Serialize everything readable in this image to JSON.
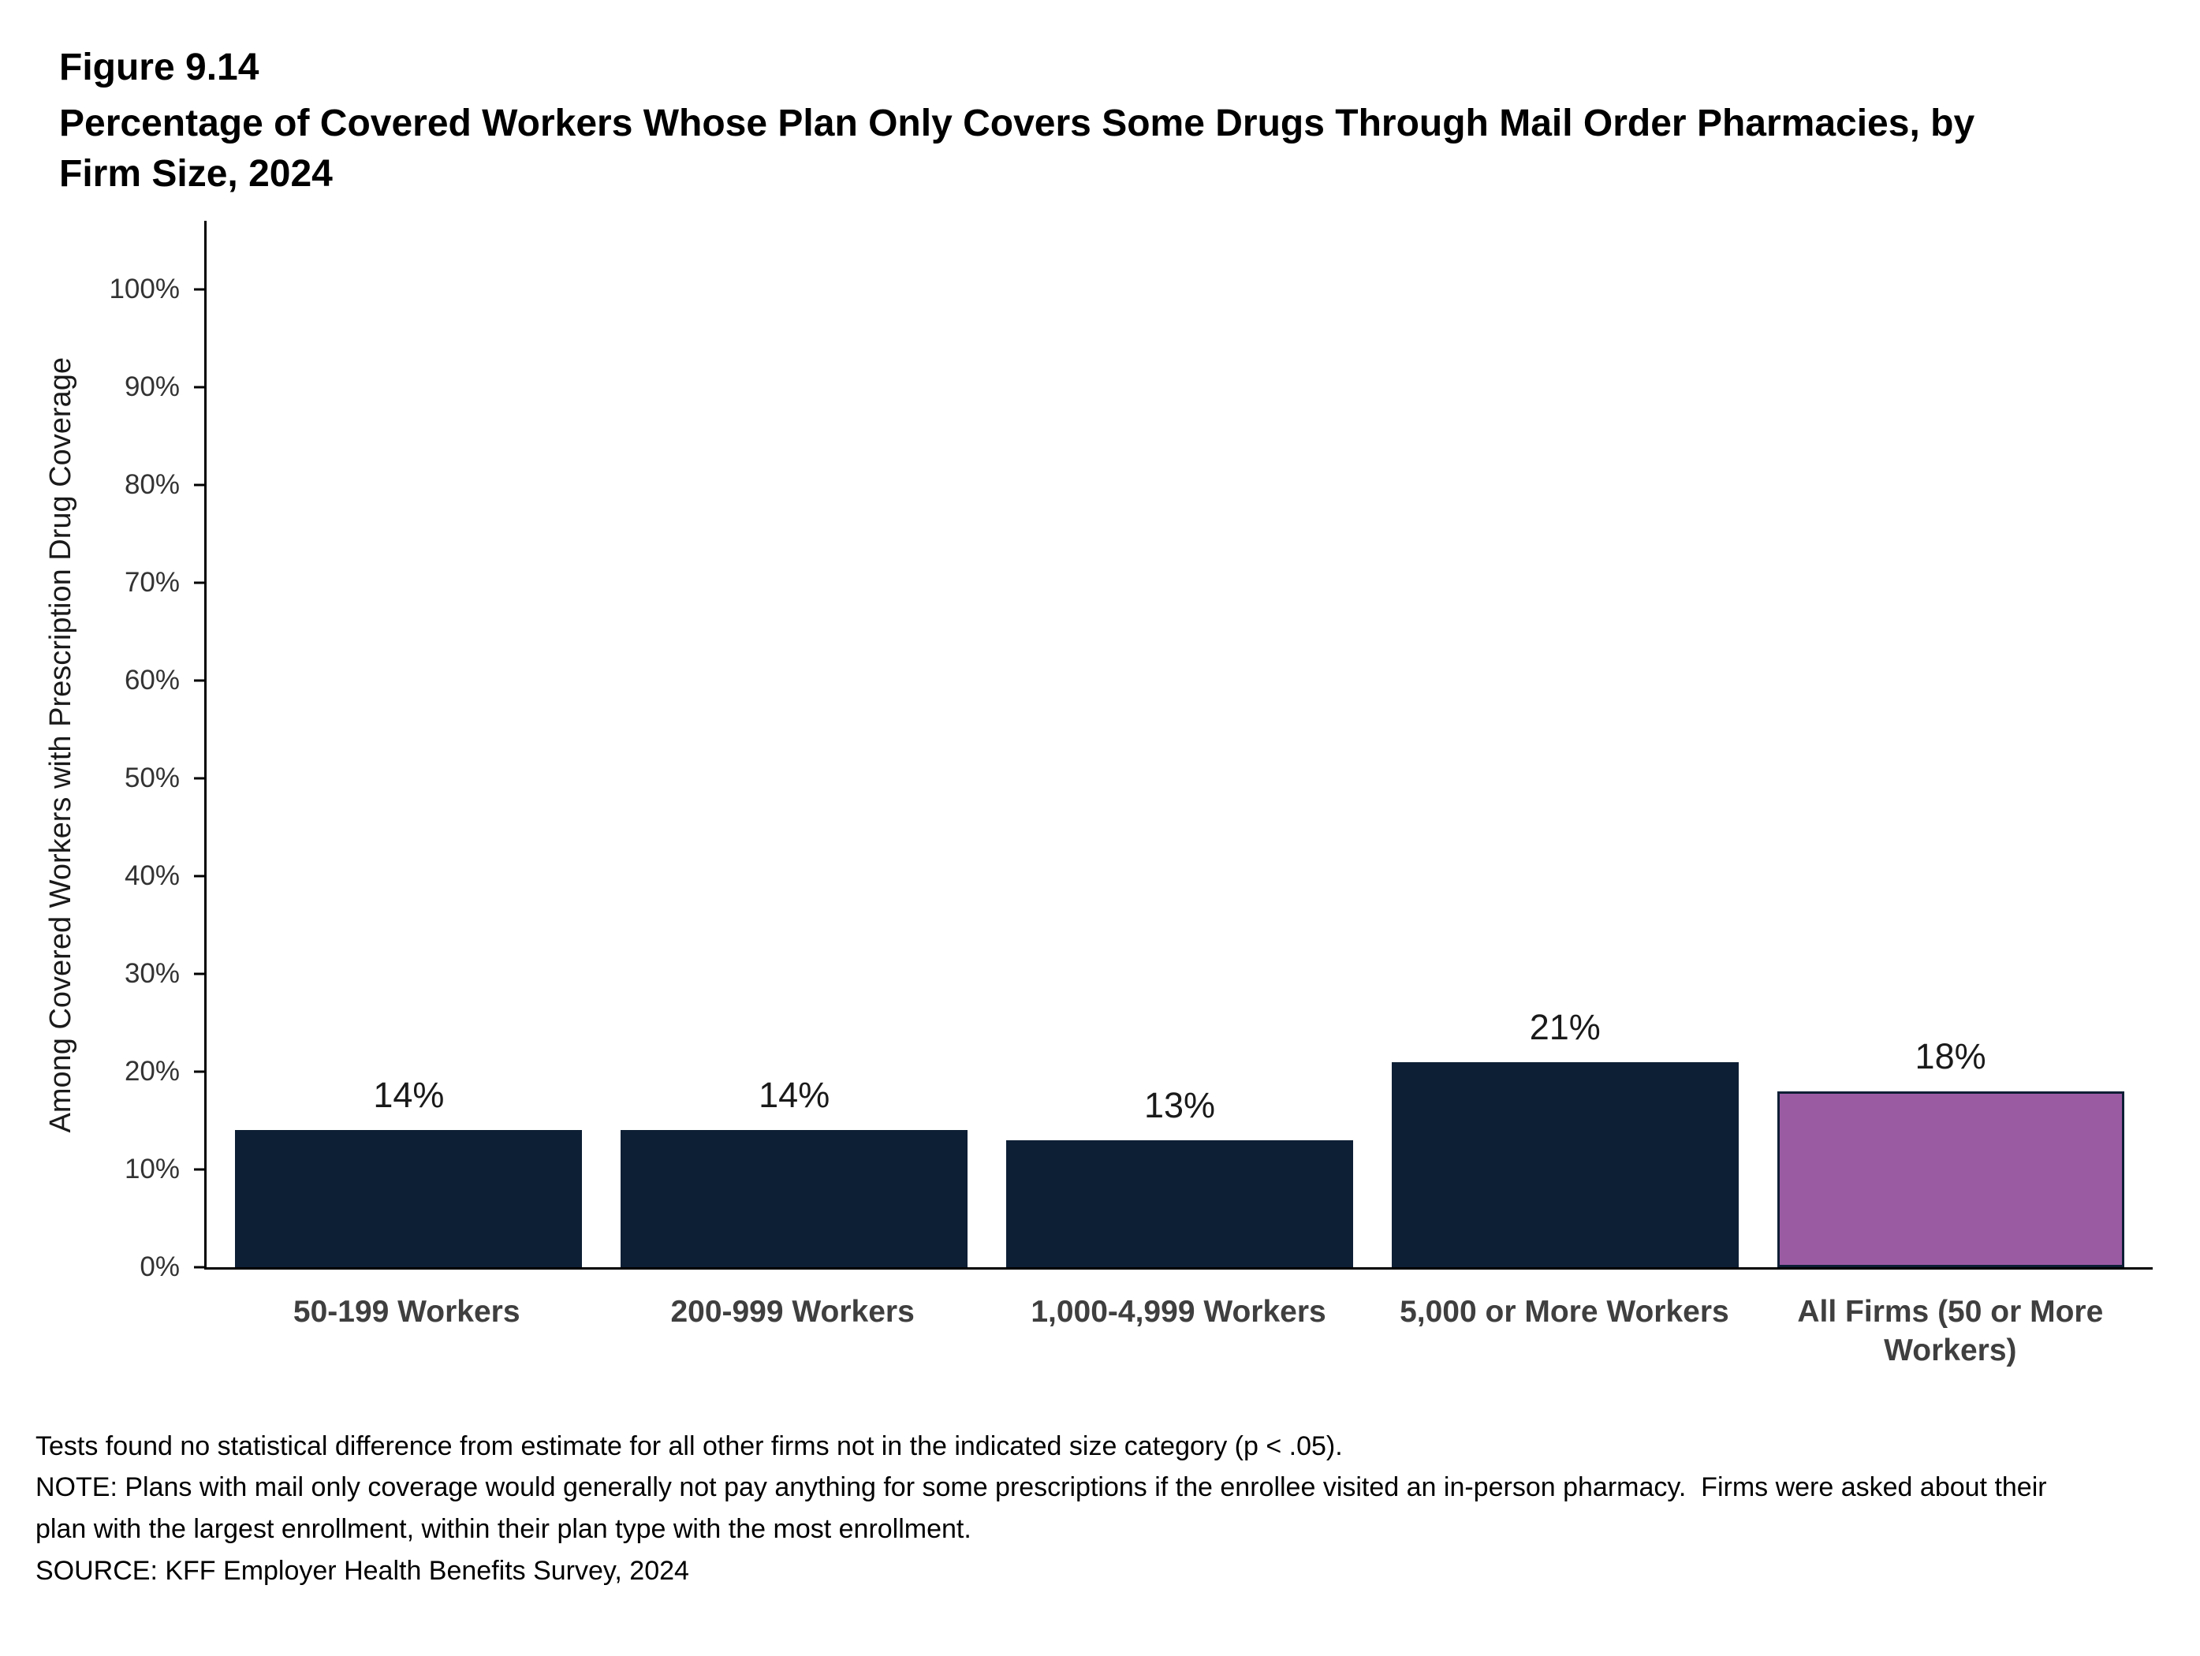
{
  "header": {
    "figure_label": "Figure 9.14",
    "title": "Percentage of Covered Workers Whose Plan Only Covers Some Drugs Through Mail Order Pharmacies, by Firm Size, 2024"
  },
  "chart_data": {
    "type": "bar",
    "title": "Percentage of Covered Workers Whose Plan Only Covers Some Drugs Through Mail Order Pharmacies, by Firm Size, 2024",
    "categories": [
      "50-199 Workers",
      "200-999 Workers",
      "1,000-4,999 Workers",
      "5,000 or More Workers",
      "All Firms (50 or More Workers)"
    ],
    "values": [
      14,
      14,
      13,
      21,
      18
    ],
    "value_labels": [
      "14%",
      "14%",
      "13%",
      "21%",
      "18%"
    ],
    "bar_colors": [
      "#0d1f35",
      "#0d1f35",
      "#0d1f35",
      "#0d1f35",
      "#9b5ba3"
    ],
    "bar_border_color": "#0d1f35",
    "xlabel": "",
    "ylabel": "Among Covered Workers with Prescription Drug Coverage",
    "yticks": [
      0,
      10,
      20,
      30,
      40,
      50,
      60,
      70,
      80,
      90,
      100
    ],
    "ytick_suffix": "%",
    "ylim": [
      0,
      107
    ],
    "grid": false,
    "legend": false
  },
  "footnotes": {
    "lines": [
      "Tests found no statistical difference from estimate for all other firms not in the indicated size category (p < .05).",
      "NOTE: Plans with mail only coverage would generally not pay anything for some prescriptions if the enrollee visited an in-person pharmacy.  Firms were asked about their plan with the largest enrollment, within their plan type with the most enrollment.",
      "SOURCE: KFF Employer Health Benefits Survey, 2024"
    ]
  }
}
